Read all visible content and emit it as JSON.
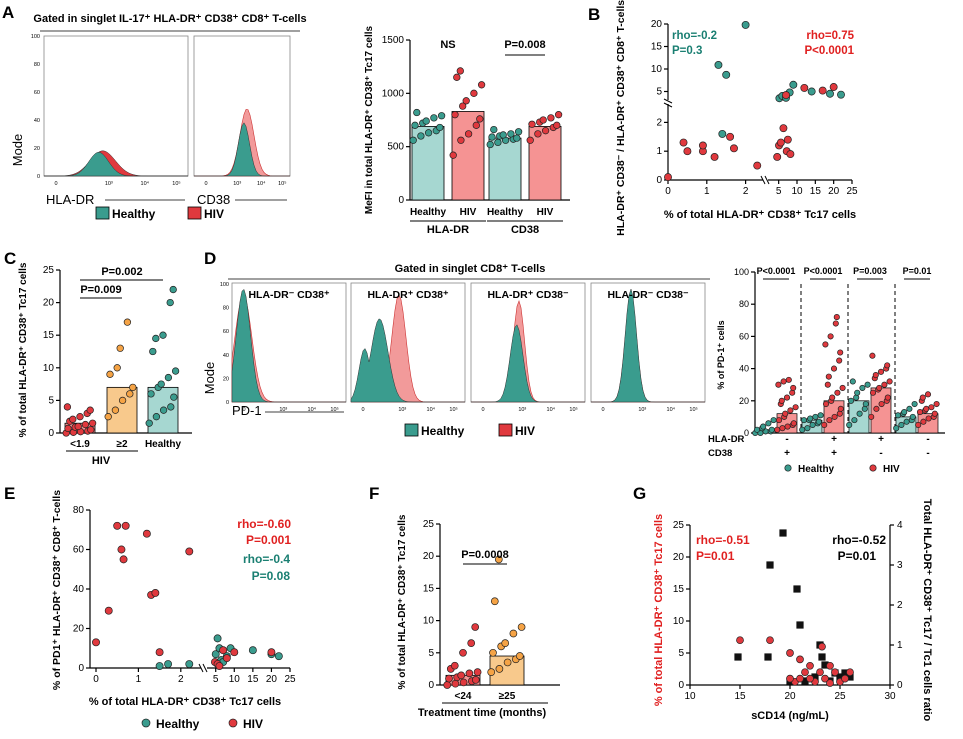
{
  "colors": {
    "healthy": "#3a9c8e",
    "hiv": "#e0393e",
    "hiv_light": "#f29a9a",
    "orange": "#f5a345",
    "bar_healthy": "#a6d7d1",
    "bar_hiv": "#f59393",
    "bar_orange": "#f8c98c",
    "teal_text": "#1a7f72",
    "red_text": "#e02020"
  },
  "legend": {
    "healthy": "Healthy",
    "hiv": "HIV"
  },
  "chart_data": [
    {
      "panel": "A-histograms",
      "type": "histogram",
      "title": "Gated in singlet IL-17⁺ HLA-DR⁺ CD38⁺ CD8⁺ T-cells",
      "ylabel": "Mode",
      "markers": [
        "HLA-DR",
        "CD38"
      ],
      "yticks": [
        "0",
        "20",
        "40",
        "60",
        "80",
        "100"
      ],
      "xticks": [
        "0",
        "10³",
        "10⁴",
        "10⁵"
      ]
    },
    {
      "panel": "A",
      "type": "bar",
      "ylabel": "MeFI in total HLA-DR⁺ CD38⁺ Tc17 cells",
      "ylim": [
        0,
        1500
      ],
      "yticks": [
        "0",
        "500",
        "1000",
        "1500"
      ],
      "groups": [
        {
          "name": "HLA-DR",
          "bars": [
            {
              "label": "Healthy",
              "mean": 690,
              "points": [
                560,
                600,
                630,
                650,
                680,
                700,
                720,
                740,
                770,
                790,
                820
              ]
            },
            {
              "label": "HIV",
              "mean": 830,
              "points": [
                420,
                560,
                620,
                700,
                760,
                800,
                880,
                930,
                1000,
                1080,
                1150,
                1210
              ]
            }
          ],
          "sig": "NS"
        },
        {
          "name": "CD38",
          "bars": [
            {
              "label": "Healthy",
              "mean": 580,
              "points": [
                520,
                540,
                560,
                570,
                580,
                590,
                600,
                610,
                620,
                640,
                660
              ]
            },
            {
              "label": "HIV",
              "mean": 690,
              "points": [
                560,
                620,
                650,
                680,
                700,
                710,
                730,
                750,
                770,
                800
              ]
            }
          ],
          "sig": "P=0.008"
        }
      ]
    },
    {
      "panel": "B",
      "type": "scatter",
      "xlabel": "% of total HLA-DR⁺ CD38⁺ Tc17 cells",
      "ylabel": "HLA-DR⁺ CD38⁻ / HLA-DR⁺ CD38⁺ CD8⁺ T-cells ratio",
      "xticks_left": [
        "0",
        "1",
        "2"
      ],
      "xticks_right": [
        "5",
        "10",
        "15",
        "20",
        "25"
      ],
      "yticks_low": [
        "0",
        "1",
        "2"
      ],
      "yticks_high": [
        "5",
        "10",
        "15",
        "20"
      ],
      "annotations": {
        "healthy": [
          "rho=-0.2",
          "P=0.3"
        ],
        "hiv": [
          "rho=0.75",
          "P<0.0001"
        ]
      },
      "healthy": [
        [
          1.3,
          10.9
        ],
        [
          1.5,
          8.7
        ],
        [
          2.0,
          19.8
        ],
        [
          1.4,
          1.6
        ],
        [
          5.2,
          3.5
        ],
        [
          6,
          4
        ],
        [
          7,
          3.6
        ],
        [
          8,
          4.8
        ],
        [
          9,
          6.5
        ],
        [
          14,
          5
        ],
        [
          19,
          4.5
        ],
        [
          22,
          4.3
        ]
      ],
      "hiv": [
        [
          0,
          0.1
        ],
        [
          0.5,
          1.0
        ],
        [
          0.9,
          1.0
        ],
        [
          0.4,
          1.3
        ],
        [
          0.9,
          1.2
        ],
        [
          1.2,
          0.8
        ],
        [
          1.7,
          1.1
        ],
        [
          1.6,
          1.5
        ],
        [
          2.3,
          0.5
        ],
        [
          4.6,
          0.8
        ],
        [
          5.1,
          1.2
        ],
        [
          5.6,
          1.3
        ],
        [
          6.3,
          1.8
        ],
        [
          7.2,
          1.0
        ],
        [
          7.5,
          1.4
        ],
        [
          8.2,
          0.9
        ],
        [
          7.0,
          4.2
        ],
        [
          12,
          5.8
        ],
        [
          17,
          5.2
        ],
        [
          20,
          6.0
        ]
      ]
    },
    {
      "panel": "C",
      "type": "bar",
      "ylabel": "% of total HLA-DR⁺ CD38⁺ Tc17 cells",
      "ylim": [
        0,
        25
      ],
      "yticks": [
        "0",
        "5",
        "10",
        "15",
        "20",
        "25"
      ],
      "categories": [
        "<1.9",
        "≥2",
        "Healthy"
      ],
      "group_label": "HIV",
      "means": [
        1.5,
        7.0,
        7.0
      ],
      "points": [
        [
          0,
          0.1,
          0.2,
          0.3,
          0.5,
          0.7,
          0.9,
          1.0,
          1.3,
          1.5,
          1.8,
          2.1,
          2.5,
          3.0,
          3.5,
          4.0
        ],
        [
          2.5,
          3.5,
          5.0,
          6.0,
          7.0,
          9.0,
          10.0,
          13.0,
          17.0
        ],
        [
          1.5,
          2.5,
          3.5,
          4.0,
          5.5,
          6.0,
          7.0,
          7.5,
          8.5,
          9.5,
          12.5,
          14.5,
          15.0,
          20.0,
          22.0
        ]
      ],
      "sig": [
        "P=0.009",
        "P=0.002"
      ]
    },
    {
      "panel": "D-histograms",
      "type": "histogram",
      "title": "Gated in singlet CD8⁺ T-cells",
      "ylabel": "Mode",
      "xlabel": "PD-1",
      "subsets": [
        "HLA-DR⁻ CD38⁺",
        "HLA-DR⁺ CD38⁺",
        "HLA-DR⁺ CD38⁻",
        "HLA-DR⁻ CD38⁻"
      ],
      "xticks": [
        "0",
        "10³",
        "10⁴",
        "10⁵"
      ]
    },
    {
      "panel": "D",
      "type": "bar",
      "ylabel": "% of PD-1⁺ cells",
      "ylim": [
        0,
        100
      ],
      "yticks": [
        "0",
        "20",
        "40",
        "60",
        "80",
        "100"
      ],
      "row_labels": [
        "HLA-DR",
        "CD38"
      ],
      "hla_signs": [
        "-",
        "+",
        "+",
        "-"
      ],
      "cd38_signs": [
        "+",
        "+",
        "-",
        "-"
      ],
      "means_healthy": [
        2,
        8,
        20,
        10
      ],
      "means_hiv": [
        12,
        20,
        28,
        12
      ],
      "sig": [
        "P<0.0001",
        "P<0.0001",
        "P=0.003",
        "P=0.01"
      ],
      "points_healthy": [
        [
          0,
          0,
          1,
          1,
          2,
          2,
          3,
          4,
          6,
          8
        ],
        [
          2,
          3,
          5,
          6,
          7,
          8,
          8,
          9,
          10,
          11
        ],
        [
          5,
          8,
          12,
          15,
          18,
          20,
          22,
          25,
          28,
          30,
          32
        ],
        [
          3,
          5,
          7,
          8,
          10,
          11,
          12,
          13,
          15,
          18
        ]
      ],
      "points_hiv": [
        [
          2,
          3,
          4,
          5,
          6,
          8,
          10,
          12,
          14,
          16,
          18,
          20,
          22,
          25,
          28,
          30,
          32,
          33
        ],
        [
          5,
          8,
          10,
          12,
          15,
          18,
          20,
          22,
          25,
          28,
          30,
          35,
          40,
          45,
          50,
          55,
          60,
          68,
          72
        ],
        [
          10,
          15,
          18,
          20,
          22,
          25,
          27,
          28,
          30,
          32,
          34,
          36,
          38,
          40,
          42,
          48
        ],
        [
          5,
          7,
          9,
          10,
          12,
          13,
          14,
          15,
          16,
          18,
          20,
          22,
          24
        ]
      ]
    },
    {
      "panel": "E",
      "type": "scatter",
      "xlabel": "% of total HLA-DR⁺ CD38⁺ Tc17 cells",
      "ylabel": "% of PD1⁺ HLA-DR⁺ CD38⁺ CD8⁺ T-cells",
      "ylim": [
        0,
        80
      ],
      "yticks": [
        "0",
        "20",
        "40",
        "60",
        "80"
      ],
      "xticks_left": [
        "0",
        "1",
        "2"
      ],
      "xticks_right": [
        "5",
        "10",
        "15",
        "20",
        "25"
      ],
      "annotations": {
        "hiv": [
          "rho=-0.60",
          "P=0.001"
        ],
        "healthy": [
          "rho=-0.4",
          "P=0.08"
        ]
      },
      "hiv": [
        [
          0,
          13
        ],
        [
          0.3,
          29
        ],
        [
          0.5,
          72
        ],
        [
          0.7,
          72
        ],
        [
          0.6,
          60
        ],
        [
          0.65,
          55
        ],
        [
          1.2,
          68
        ],
        [
          1.3,
          37
        ],
        [
          1.4,
          38
        ],
        [
          2.2,
          59
        ],
        [
          1.5,
          8
        ],
        [
          4.8,
          3
        ],
        [
          5.5,
          2
        ],
        [
          6,
          1
        ],
        [
          7,
          9
        ],
        [
          8,
          5
        ],
        [
          10,
          8
        ],
        [
          20,
          8
        ]
      ],
      "healthy": [
        [
          1.5,
          1
        ],
        [
          1.7,
          2
        ],
        [
          2.2,
          2
        ],
        [
          5,
          7
        ],
        [
          5.5,
          15
        ],
        [
          6,
          10
        ],
        [
          6.5,
          4
        ],
        [
          7,
          3
        ],
        [
          8,
          6
        ],
        [
          9,
          10
        ],
        [
          15,
          9
        ],
        [
          20,
          7
        ],
        [
          22,
          6
        ]
      ]
    },
    {
      "panel": "F",
      "type": "bar",
      "ylabel": "% of total HLA-DR⁺ CD38⁺ Tc17 cells",
      "xlabel": "Treatment time (months)",
      "ylim": [
        0,
        25
      ],
      "yticks": [
        "0",
        "5",
        "10",
        "15",
        "20",
        "25"
      ],
      "categories": [
        "<24",
        "≥25"
      ],
      "means": [
        1.5,
        4.5
      ],
      "points": [
        [
          0,
          0.2,
          0.4,
          0.6,
          0.8,
          1.0,
          1.2,
          1.5,
          1.8,
          2.0,
          2.5,
          3.0,
          5.0,
          6.5,
          9.0
        ],
        [
          2.0,
          2.5,
          3.5,
          4.0,
          4.5,
          5.0,
          6.0,
          6.5,
          8.0,
          9.0,
          13.0,
          19.5
        ]
      ],
      "sig": "P=0.0008"
    },
    {
      "panel": "G",
      "type": "scatter",
      "xlabel": "sCD14 (ng/mL)",
      "ylabel": "% of total HLA-DR⁺ CD38⁺ Tc17 cells",
      "ylabel_right": "Total HLA-DR⁺ CD38⁺ Tc17 / Tc1 cells ratio",
      "xlim": [
        10,
        30
      ],
      "xticks": [
        "10",
        "15",
        "20",
        "25",
        "30"
      ],
      "ylim": [
        0,
        25
      ],
      "yticks": [
        "0",
        "5",
        "10",
        "15",
        "20",
        "25"
      ],
      "ylim_right": [
        0,
        4
      ],
      "yticks_right": [
        "0",
        "1",
        "2",
        "3",
        "4"
      ],
      "annotations": {
        "hiv": [
          "rho=-0.51",
          "P=0.01"
        ],
        "ratio": [
          "rho=-0.52",
          "P=0.01"
        ]
      },
      "hiv": [
        [
          15,
          7
        ],
        [
          18,
          7
        ],
        [
          20,
          5
        ],
        [
          20.5,
          0.5
        ],
        [
          21,
          1
        ],
        [
          21.5,
          2
        ],
        [
          22,
          3
        ],
        [
          22.5,
          0.5
        ],
        [
          23,
          2
        ],
        [
          23.2,
          6
        ],
        [
          23.5,
          1
        ],
        [
          24,
          0.3
        ],
        [
          24.5,
          2
        ],
        [
          25,
          0.5
        ],
        [
          25.5,
          1
        ],
        [
          26,
          2
        ],
        [
          22,
          1
        ],
        [
          21,
          4
        ],
        [
          20,
          1
        ],
        [
          24,
          3
        ]
      ],
      "ratio": [
        [
          14.8,
          0.7
        ],
        [
          17.8,
          0.7
        ],
        [
          18,
          3.0
        ],
        [
          19.3,
          3.8
        ],
        [
          20.7,
          2.4
        ],
        [
          21,
          1.5
        ],
        [
          23,
          1.0
        ],
        [
          23.5,
          0.5
        ],
        [
          24,
          0.1
        ],
        [
          24.5,
          0.3
        ],
        [
          25,
          0.2
        ],
        [
          25.5,
          0.3
        ],
        [
          22.5,
          0.2
        ],
        [
          21.5,
          0.1
        ],
        [
          20,
          0.1
        ],
        [
          26,
          0.2
        ],
        [
          23.2,
          0.7
        ]
      ]
    }
  ]
}
